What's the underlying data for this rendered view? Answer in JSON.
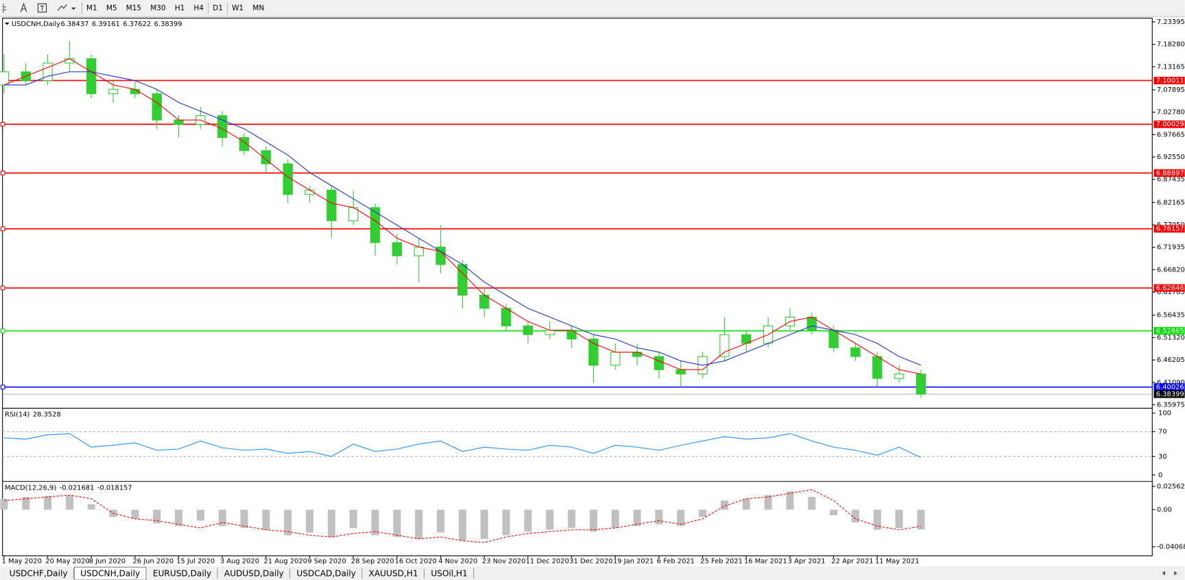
{
  "toolbar": {
    "timeframes": [
      "M1",
      "M5",
      "M15",
      "M30",
      "H1",
      "H4",
      "D1",
      "W1",
      "MN"
    ]
  },
  "tabs": [
    "USDCHF,Daily",
    "USDCNH,Daily",
    "EURUSD,Daily",
    "AUDUSD,Daily",
    "USDCAD,Daily",
    "XAUUSD,H1",
    "USOil,H1"
  ],
  "active_tab": 1,
  "chart_data": {
    "type": "candlestick",
    "title": "USDCNH,Daily",
    "quote": [
      6.38437,
      6.39161,
      6.37622,
      6.38399
    ],
    "categories": [
      "1 May 2020",
      null,
      "20 May 2020",
      null,
      "8 Jun 2020",
      null,
      "26 Jun 2020",
      null,
      "15 Jul 2020",
      null,
      "3 Aug 2020",
      null,
      "21 Aug 2020",
      null,
      "9 Sep 2020",
      null,
      "28 Sep 2020",
      null,
      "16 Oct 2020",
      null,
      "4 Nov 2020",
      null,
      "23 Nov 2020",
      null,
      "11 Dec 2020",
      null,
      "31 Dec 2020",
      null,
      "19 Jan 2021",
      null,
      "6 Feb 2021",
      null,
      "25 Feb 2021",
      null,
      "16 Mar 2021",
      null,
      "3 Apr 2021",
      null,
      "22 Apr 2021",
      null,
      "11 May 2021",
      null,
      null
    ],
    "open": [
      7.09,
      7.12,
      7.1,
      7.14,
      7.15,
      7.07,
      7.08,
      7.07,
      7.01,
      7.0,
      7.02,
      6.97,
      6.94,
      6.91,
      6.84,
      6.85,
      6.78,
      6.81,
      6.73,
      6.7,
      6.72,
      6.68,
      6.61,
      6.58,
      6.54,
      6.52,
      6.53,
      6.51,
      6.45,
      6.48,
      6.47,
      6.44,
      6.43,
      6.47,
      6.52,
      6.5,
      6.54,
      6.56,
      6.53,
      6.49,
      6.47,
      6.42,
      6.43
    ],
    "high": [
      7.16,
      7.14,
      7.16,
      7.19,
      7.16,
      7.1,
      7.1,
      7.08,
      7.02,
      7.04,
      7.03,
      6.98,
      6.95,
      6.92,
      6.86,
      6.86,
      6.85,
      6.82,
      6.75,
      6.74,
      6.77,
      6.69,
      6.63,
      6.59,
      6.55,
      6.55,
      6.54,
      6.52,
      6.5,
      6.5,
      6.48,
      6.46,
      6.48,
      6.56,
      6.53,
      6.56,
      6.58,
      6.57,
      6.54,
      6.5,
      6.48,
      6.45,
      6.44
    ],
    "low": [
      7.07,
      7.09,
      7.09,
      7.12,
      7.06,
      7.05,
      7.06,
      6.99,
      6.97,
      6.99,
      6.95,
      6.93,
      6.89,
      6.82,
      6.82,
      6.74,
      6.77,
      6.7,
      6.68,
      6.64,
      6.66,
      6.58,
      6.56,
      6.53,
      6.5,
      6.51,
      6.49,
      6.41,
      6.44,
      6.45,
      6.42,
      6.4,
      6.42,
      6.46,
      6.48,
      6.49,
      6.53,
      6.52,
      6.48,
      6.46,
      6.4,
      6.41,
      6.37622
    ],
    "close": [
      7.12,
      7.1,
      7.14,
      7.15,
      7.07,
      7.08,
      7.07,
      7.01,
      7.0,
      7.02,
      6.97,
      6.94,
      6.91,
      6.84,
      6.85,
      6.78,
      6.81,
      6.73,
      6.7,
      6.72,
      6.68,
      6.61,
      6.58,
      6.54,
      6.52,
      6.53,
      6.51,
      6.45,
      6.48,
      6.47,
      6.44,
      6.43,
      6.47,
      6.52,
      6.5,
      6.54,
      6.56,
      6.53,
      6.49,
      6.47,
      6.42,
      6.43,
      6.38399
    ],
    "up_color": "#ffffff",
    "down_color": "#32cd32",
    "wick_color": "#32cd32",
    "overlays": [
      {
        "color": "#ff0000",
        "values": [
          7.09,
          7.11,
          7.13,
          7.15,
          7.12,
          7.09,
          7.08,
          7.05,
          7.01,
          7.01,
          6.99,
          6.96,
          6.92,
          6.88,
          6.85,
          6.82,
          6.81,
          6.78,
          6.74,
          6.72,
          6.71,
          6.66,
          6.61,
          6.58,
          6.55,
          6.53,
          6.53,
          6.5,
          6.48,
          6.48,
          6.46,
          6.44,
          6.44,
          6.48,
          6.5,
          6.52,
          6.55,
          6.56,
          6.53,
          6.5,
          6.47,
          6.44,
          6.43
        ]
      },
      {
        "color": "#1f2fd0",
        "values": [
          7.09,
          7.09,
          7.11,
          7.12,
          7.12,
          7.11,
          7.1,
          7.08,
          7.05,
          7.03,
          7.01,
          6.99,
          6.96,
          6.93,
          6.89,
          6.86,
          6.83,
          6.8,
          6.77,
          6.74,
          6.71,
          6.68,
          6.64,
          6.61,
          6.58,
          6.56,
          6.54,
          6.52,
          6.51,
          6.49,
          6.48,
          6.46,
          6.45,
          6.46,
          6.48,
          6.5,
          6.52,
          6.54,
          6.53,
          6.52,
          6.5,
          6.47,
          6.45
        ]
      }
    ],
    "levels": [
      {
        "value": 7.10011,
        "color": "#ff0000"
      },
      {
        "value": 7.00029,
        "color": "#ff0000"
      },
      {
        "value": 6.88897,
        "color": "#ff0000"
      },
      {
        "value": 6.76157,
        "color": "#ff0000"
      },
      {
        "value": 6.62646,
        "color": "#ff0000"
      },
      {
        "value": 6.52865,
        "color": "#00e000"
      },
      {
        "value": 6.40026,
        "color": "#0000ff"
      }
    ],
    "ylim": [
      6.3529,
      7.2426
    ],
    "yticks": [
      7.23395,
      {
        "value": 7.1828,
        "label": "7.18280"
      },
      7.13165,
      7.07895,
      {
        "value": 7.0278,
        "label": "7.02780"
      },
      6.97665,
      {
        "value": 6.9255,
        "label": "6.92550"
      },
      6.87435,
      6.82165,
      {
        "value": 6.7705,
        "label": "6.77050"
      },
      6.71935,
      {
        "value": 6.6682,
        "label": "6.66820"
      },
      6.61705,
      6.56435,
      {
        "value": 6.5132,
        "label": "6.51320"
      },
      6.46205,
      {
        "value": 6.4109,
        "label": "6.41090"
      },
      6.35975
    ],
    "rsi": {
      "title": "RSI(14)",
      "current": 28.3528,
      "color": "#1e90ff",
      "values": [
        60,
        58,
        65,
        67,
        45,
        48,
        52,
        40,
        42,
        55,
        44,
        40,
        42,
        35,
        38,
        30,
        50,
        38,
        42,
        50,
        55,
        38,
        45,
        42,
        40,
        48,
        45,
        35,
        48,
        45,
        40,
        48,
        55,
        62,
        58,
        60,
        67,
        55,
        45,
        40,
        32,
        45,
        28.3528
      ],
      "ylim": [
        0,
        100
      ],
      "yticks": [
        100,
        70,
        30,
        0
      ],
      "levels": [
        70,
        30
      ]
    },
    "macd": {
      "title": "MACD(12,26,9)",
      "current": [
        -0.021681,
        -0.018157
      ],
      "histogram_color": "#c0c0c0",
      "signal_color": "#ff0000",
      "histogram": [
        0.012,
        0.014,
        0.015,
        0.016,
        0.006,
        -0.008,
        -0.01,
        -0.015,
        -0.018,
        -0.012,
        -0.018,
        -0.02,
        -0.022,
        -0.028,
        -0.025,
        -0.03,
        -0.02,
        -0.028,
        -0.03,
        -0.032,
        -0.025,
        -0.034,
        -0.032,
        -0.028,
        -0.024,
        -0.022,
        -0.02,
        -0.024,
        -0.02,
        -0.018,
        -0.016,
        -0.018,
        -0.008,
        0.01,
        0.012,
        0.016,
        0.02,
        0.014,
        -0.006,
        -0.014,
        -0.022,
        -0.02,
        -0.021681
      ],
      "signal": [
        0.01,
        0.012,
        0.014,
        0.016,
        0.012,
        -0.004,
        -0.01,
        -0.012,
        -0.016,
        -0.02,
        -0.014,
        -0.018,
        -0.022,
        -0.024,
        -0.028,
        -0.03,
        -0.026,
        -0.024,
        -0.028,
        -0.032,
        -0.03,
        -0.034,
        -0.036,
        -0.03,
        -0.026,
        -0.024,
        -0.022,
        -0.022,
        -0.02,
        -0.016,
        -0.012,
        -0.016,
        -0.01,
        0.004,
        0.012,
        0.014,
        0.018,
        0.022,
        0.01,
        -0.01,
        -0.018,
        -0.022,
        -0.018157
      ],
      "ylim": [
        -0.05061,
        0.03058
      ],
      "yticks": [
        0.025623,
        {
          "value": 0,
          "label": "0.00"
        },
        -0.040687
      ]
    }
  }
}
